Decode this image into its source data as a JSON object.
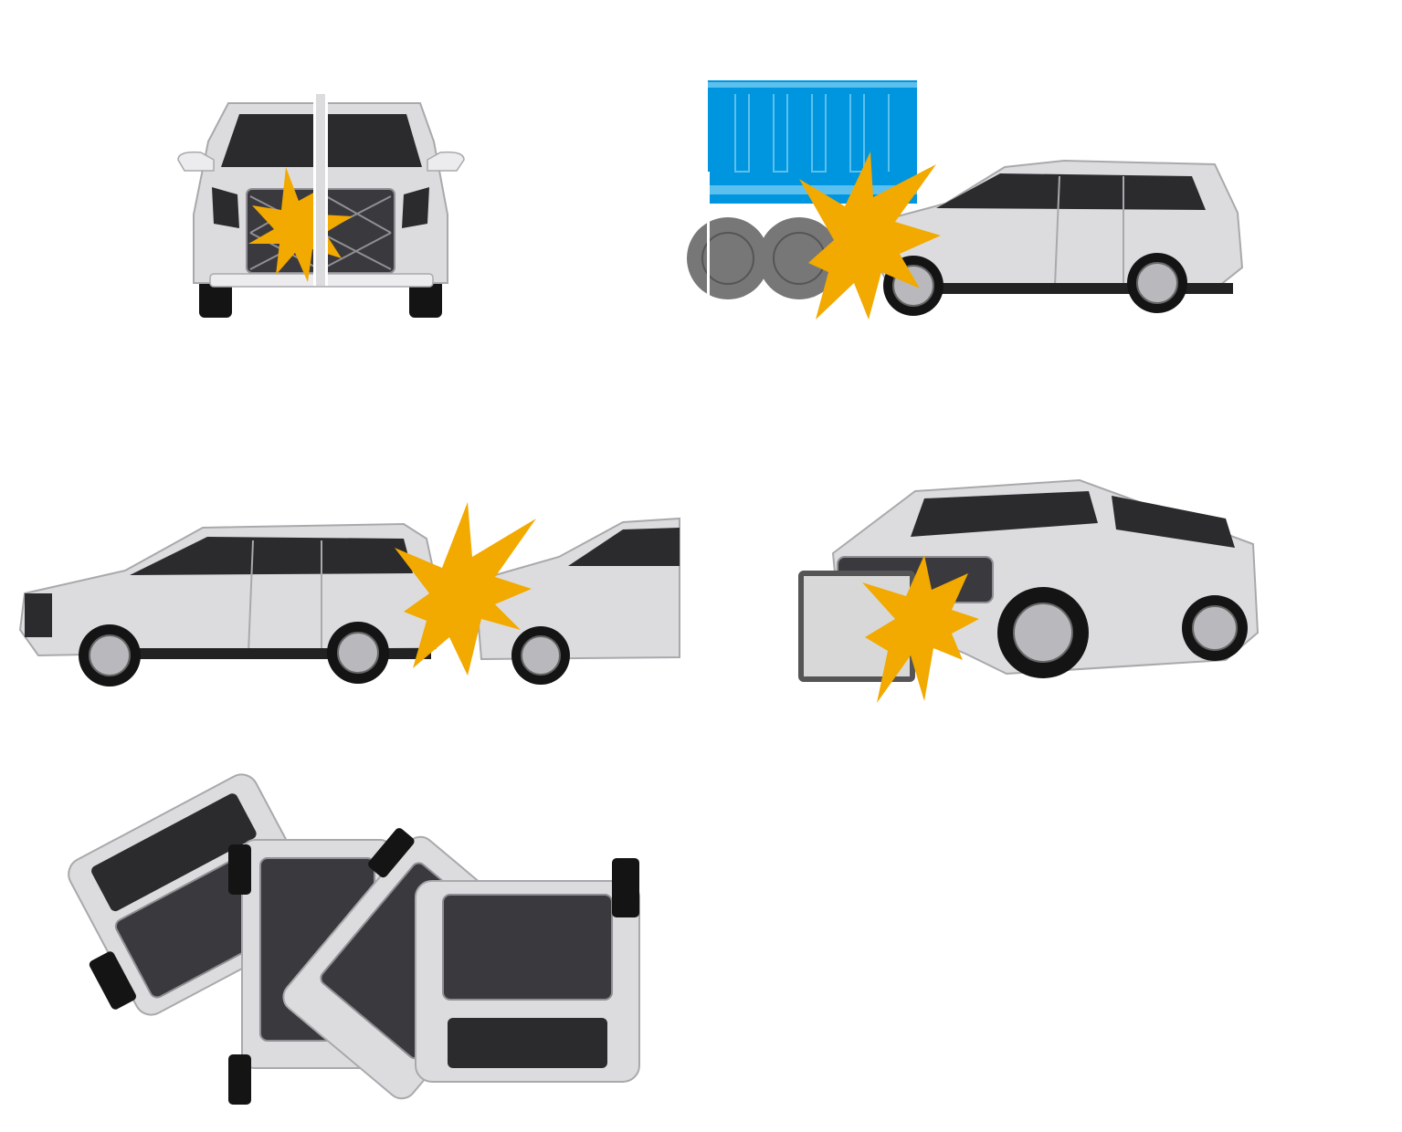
{
  "colors": {
    "background": "#ffffff",
    "impact_star": "#f2a900",
    "car_body": "#dcdcde",
    "car_body_light": "#ececee",
    "car_shadow": "#a9a9ad",
    "glass": "#2b2b2e",
    "tire": "#141414",
    "wheel_rim": "#b9b9bd",
    "grille_dark": "#3a3a3e",
    "grille_light": "#8f8f95",
    "truck_blue": "#0096df",
    "truck_blue_light": "#5cc0ee",
    "truck_wheel": "#777777",
    "barrier_fill": "#d8d8d8",
    "barrier_frame": "#555555"
  },
  "panels": [
    {
      "id": "frontal-pole-impact",
      "icon": "front-pole-collision-icon"
    },
    {
      "id": "truck-underride-impact",
      "icon": "truck-collision-icon"
    },
    {
      "id": "rear-end-impact",
      "icon": "rear-end-collision-icon"
    },
    {
      "id": "offset-barrier-impact",
      "icon": "barrier-collision-icon"
    },
    {
      "id": "rollover",
      "icon": "rollover-icon"
    }
  ]
}
